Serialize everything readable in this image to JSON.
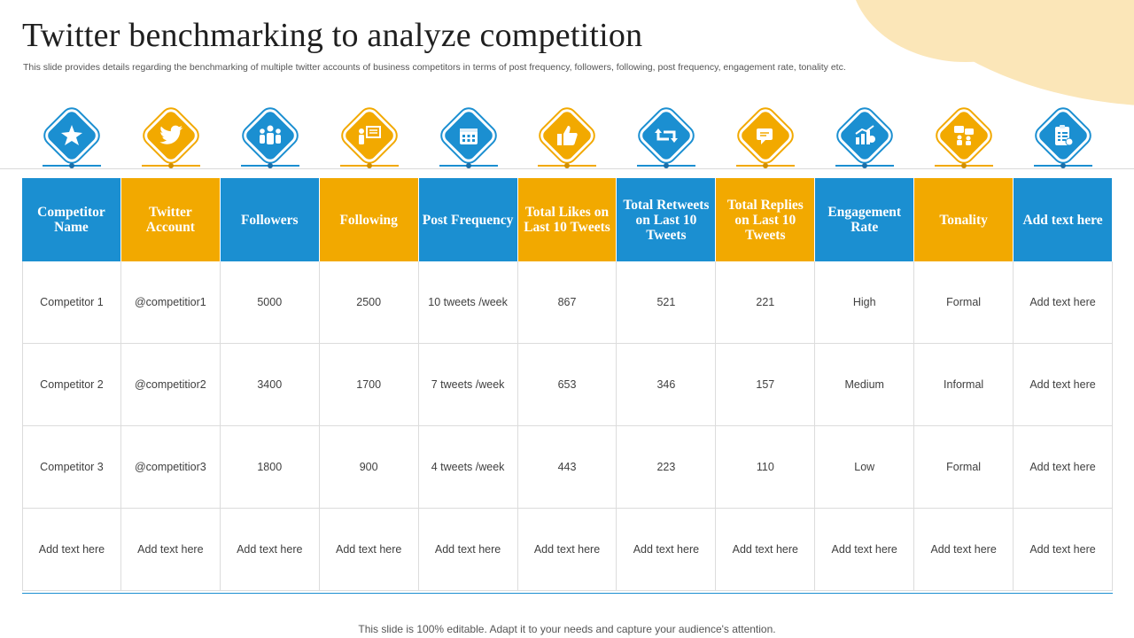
{
  "title": "Twitter benchmarking to analyze competition",
  "subtitle": "This slide provides details regarding the benchmarking of multiple twitter accounts of business competitors in terms of post frequency, followers, following, post frequency, engagement rate, tonality etc.",
  "colors": {
    "blue": "#1b8fd1",
    "orange": "#f2a900",
    "accent_blob": "#fbe6b8"
  },
  "icons": [
    {
      "name": "star-burst-icon",
      "color": "blue"
    },
    {
      "name": "twitter-bird-icon",
      "color": "orange"
    },
    {
      "name": "people-group-icon",
      "color": "blue"
    },
    {
      "name": "presenter-board-icon",
      "color": "orange"
    },
    {
      "name": "calendar-icon",
      "color": "blue"
    },
    {
      "name": "thumbs-up-icon",
      "color": "orange"
    },
    {
      "name": "retweet-icon",
      "color": "blue"
    },
    {
      "name": "chat-reply-icon",
      "color": "orange"
    },
    {
      "name": "growth-chart-icon",
      "color": "blue"
    },
    {
      "name": "conversation-icon",
      "color": "orange"
    },
    {
      "name": "checklist-icon",
      "color": "blue"
    }
  ],
  "table": {
    "headers": [
      "Competitor Name",
      "Twitter Account",
      "Followers",
      "Following",
      "Post Frequency",
      "Total Likes on Last 10 Tweets",
      "Total Retweets on Last 10 Tweets",
      "Total Replies on Last 10 Tweets",
      "Engagement Rate",
      "Tonality",
      "Add text here"
    ],
    "rows": [
      [
        "Competitor  1",
        "@competitior1",
        "5000",
        "2500",
        "10 tweets /week",
        "867",
        "521",
        "221",
        "High",
        "Formal",
        "Add text here"
      ],
      [
        "Competitor  2",
        "@competitior2",
        "3400",
        "1700",
        "7 tweets /week",
        "653",
        "346",
        "157",
        "Medium",
        "Informal",
        "Add text here"
      ],
      [
        "Competitor  3",
        "@competitior3",
        "1800",
        "900",
        "4 tweets /week",
        "443",
        "223",
        "110",
        "Low",
        "Formal",
        "Add text here"
      ],
      [
        "Add text here",
        "Add text here",
        "Add text here",
        "Add text here",
        "Add text here",
        "Add text here",
        "Add text here",
        "Add text here",
        "Add text here",
        "Add text here",
        "Add text here"
      ]
    ]
  },
  "footer": "This slide is 100% editable. Adapt it to your needs and capture your audience's attention."
}
